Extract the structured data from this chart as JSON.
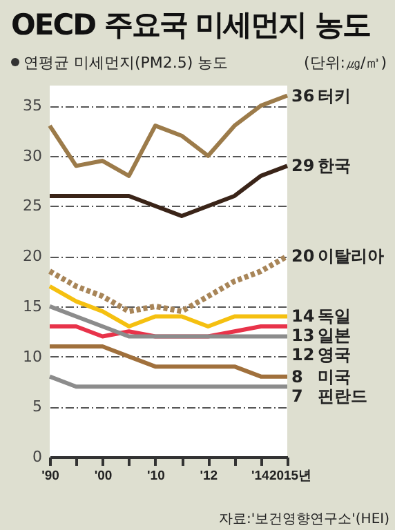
{
  "chart_data": {
    "type": "line",
    "title": "OECD 주요국 미세먼지 농도",
    "subtitle": "연평균 미세먼지(PM2.5) 농도",
    "ylabel": "(단위:㎍/㎥)",
    "annotations": [
      "자료:'보건영향연구소'(HEI)"
    ],
    "categories": [
      "'90",
      null,
      "'00",
      null,
      "'10",
      null,
      "'12",
      null,
      "'14",
      "2015년"
    ],
    "ylim": [
      0,
      37
    ],
    "yticks": [
      0,
      5,
      10,
      15,
      20,
      25,
      30,
      35
    ],
    "grid": "y",
    "legend": false,
    "series": [
      {
        "name": "터키",
        "color": "#9c7b4a",
        "values": [
          33,
          29,
          29.5,
          28,
          33,
          32,
          30,
          33,
          35,
          36
        ],
        "value_labels": [
          null,
          null,
          null,
          null,
          null,
          null,
          null,
          null,
          null,
          "36"
        ]
      },
      {
        "name": "한국",
        "color": "#3a2418",
        "values": [
          26,
          26,
          26,
          26,
          25,
          24,
          25,
          26,
          28,
          29
        ],
        "value_labels": [
          null,
          null,
          null,
          null,
          null,
          null,
          null,
          null,
          null,
          "29"
        ]
      },
      {
        "name": "이탈리아",
        "color": "#a88558",
        "line_style": "dotted",
        "values": [
          18.5,
          17,
          16,
          14.5,
          15,
          14.5,
          16,
          17.5,
          18.5,
          20
        ],
        "value_labels": [
          null,
          null,
          null,
          null,
          null,
          null,
          null,
          null,
          null,
          "20"
        ]
      },
      {
        "name": "독일",
        "color": "#f5c010",
        "values": [
          17,
          15.5,
          14.5,
          13,
          14,
          14,
          13,
          14,
          14,
          14
        ],
        "value_labels": [
          null,
          null,
          null,
          null,
          null,
          null,
          null,
          null,
          null,
          "14"
        ]
      },
      {
        "name": "일본",
        "color": "#e8334a",
        "values": [
          13,
          13,
          12,
          12.5,
          12,
          12,
          12,
          12.5,
          13,
          13
        ],
        "value_labels": [
          null,
          null,
          null,
          null,
          null,
          null,
          null,
          null,
          null,
          "13"
        ]
      },
      {
        "name": "영국",
        "color": "#8c8c8c",
        "values": [
          15,
          14,
          13,
          12,
          12,
          12,
          12,
          12,
          12,
          12
        ],
        "value_labels": [
          null,
          null,
          null,
          null,
          null,
          null,
          null,
          null,
          null,
          "12"
        ]
      },
      {
        "name": "미국",
        "color": "#a0703c",
        "values": [
          11,
          11,
          11,
          10,
          9,
          9,
          9,
          9,
          8,
          8
        ],
        "value_labels": [
          null,
          null,
          null,
          null,
          null,
          null,
          null,
          null,
          null,
          "8"
        ]
      },
      {
        "name": "핀란드",
        "color": "#8c8c8c",
        "values": [
          8,
          7,
          7,
          7,
          7,
          7,
          7,
          7,
          7,
          7
        ],
        "value_labels": [
          null,
          null,
          null,
          null,
          null,
          null,
          null,
          null,
          null,
          "7"
        ]
      }
    ]
  }
}
